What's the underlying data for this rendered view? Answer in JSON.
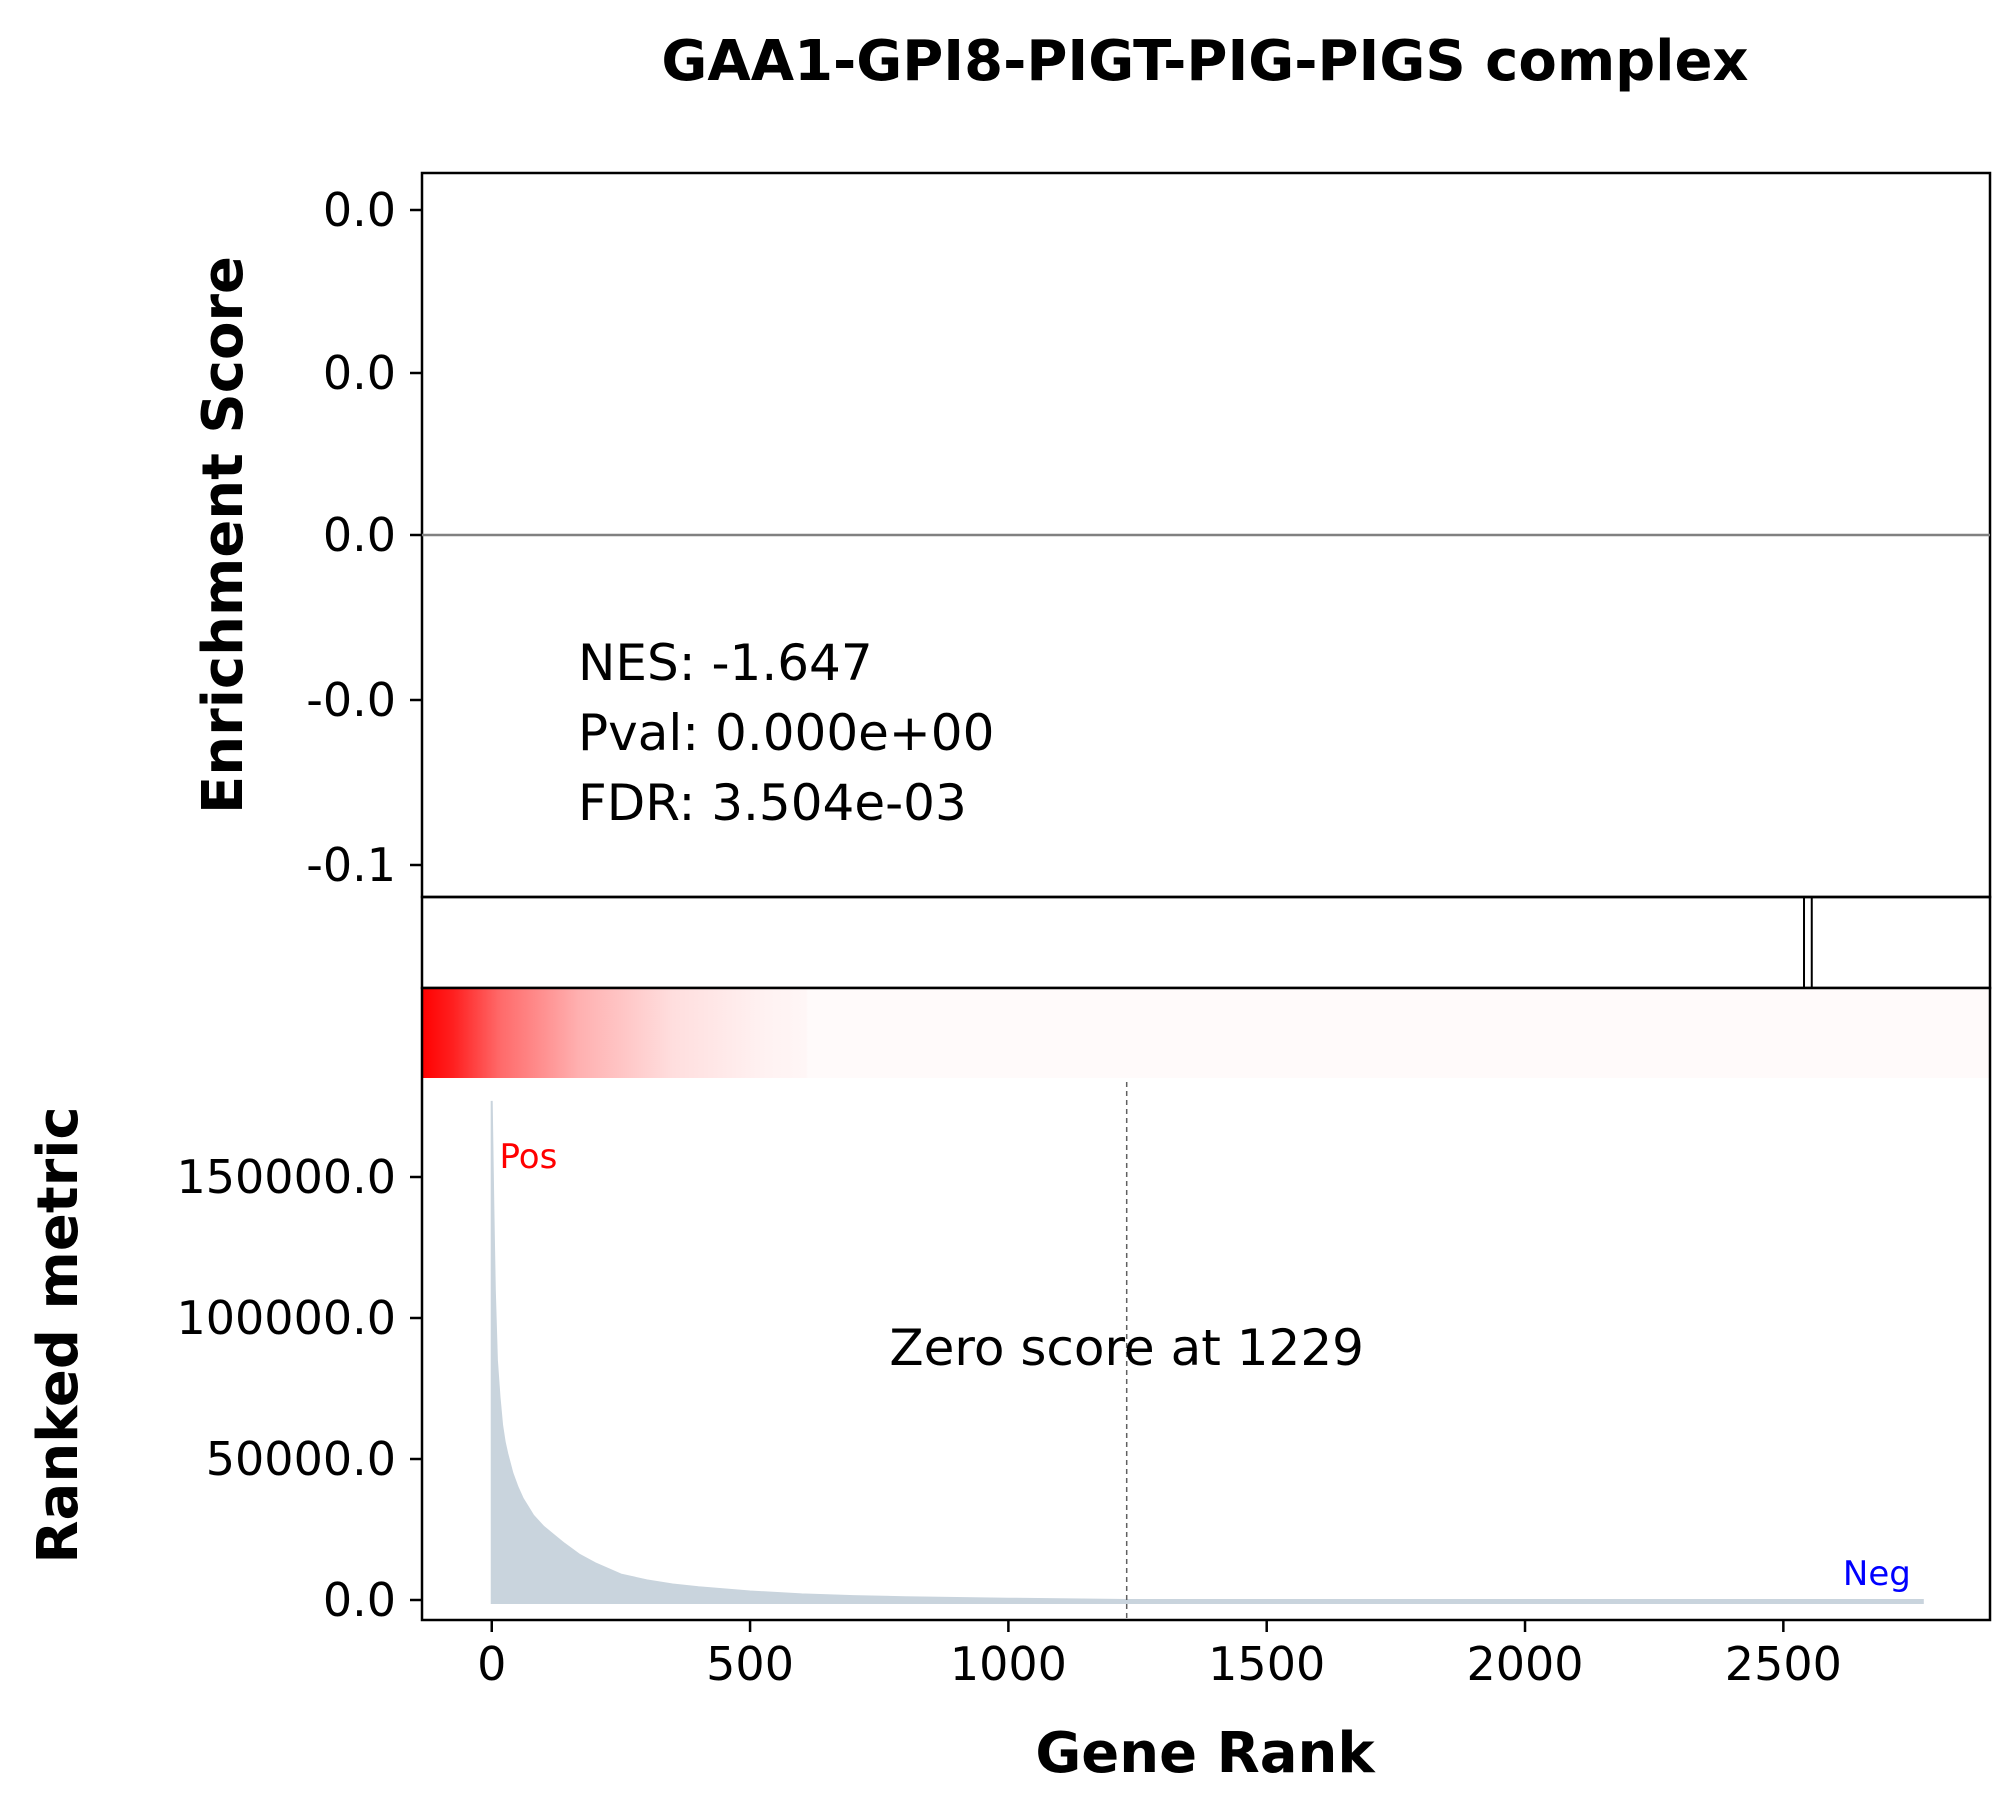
{
  "chart_data": {
    "type": "gsea_enrichment",
    "title": "GAA1-GPI8-PIGT-PIG-PIGS complex",
    "xlabel": "Gene Rank",
    "xlim": [
      -135,
      2900
    ],
    "x_ticks": [
      0,
      500,
      1000,
      1500,
      2000,
      2500
    ],
    "enrichment_panel": {
      "ylabel": "Enrichment Score",
      "y_ticks": [
        "0.0",
        "0.0",
        "0.0",
        "-0.0",
        "-0.1"
      ],
      "stats": [
        "NES: -1.647",
        "Pval: 0.000e+00",
        "FDR: 3.504e-03"
      ]
    },
    "hit_ranks": [
      2540,
      2555
    ],
    "metric_panel": {
      "ylabel": "Ranked metric",
      "ylim": [
        -4000,
        190000
      ],
      "y_ticks": [
        0,
        50000,
        100000,
        150000
      ],
      "y_tick_labels": [
        "0.0",
        "50000.0",
        "100000.0",
        "150000.0"
      ],
      "zero_score_label": "Zero score at 1229",
      "zero_score_rank": 1229,
      "pos_label": "Pos",
      "neg_label": "Neg",
      "series": {
        "x": [
          0,
          3,
          6,
          10,
          15,
          20,
          25,
          30,
          40,
          50,
          60,
          70,
          80,
          100,
          120,
          140,
          170,
          200,
          250,
          300,
          350,
          400,
          500,
          600,
          700,
          800,
          900,
          1000,
          1100,
          1229,
          1400,
          1600,
          2000,
          2400,
          2770
        ],
        "y": [
          177000,
          140000,
          110000,
          85000,
          72000,
          62000,
          56000,
          52000,
          45000,
          40000,
          36000,
          33000,
          30000,
          26000,
          23000,
          20000,
          16000,
          13000,
          9000,
          7000,
          5500,
          4500,
          3000,
          2000,
          1400,
          1000,
          700,
          450,
          250,
          0,
          0,
          0,
          0,
          0,
          0
        ]
      }
    },
    "colors": {
      "fill": "#c9d4dd",
      "pos": "#ff0000",
      "neg": "#0000ff",
      "es_line": "#808080"
    }
  }
}
